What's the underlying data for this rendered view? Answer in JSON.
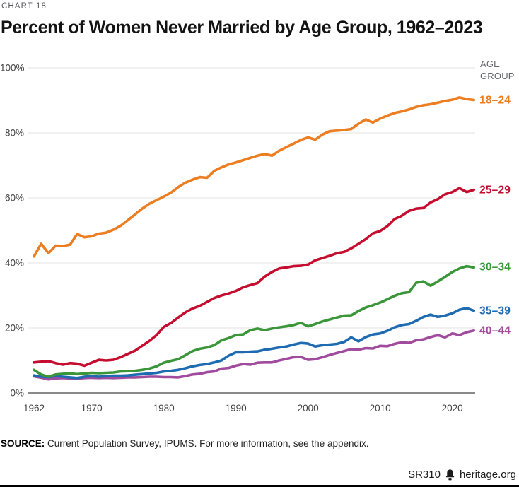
{
  "header": {
    "kicker": "CHART 18",
    "title": "Percent of Women Never Married by Age Group, 1962–2023"
  },
  "footer": {
    "source_label": "SOURCE:",
    "source_text": "Current Population Survey, IPUMS. For more information, see the appendix.",
    "report_id": "SR310",
    "site": "heritage.org"
  },
  "chart_data": {
    "type": "line",
    "title": "Percent of Women Never Married by Age Group, 1962–2023",
    "legend_title": "AGE GROUP",
    "legend_position": "right",
    "grid": true,
    "grid_color": "#e3e3e3",
    "axis_color": "#8a8a8a",
    "ylim": [
      0,
      100
    ],
    "xlim": [
      1962,
      2023
    ],
    "y_ticks": [
      {
        "value": 0,
        "label": "0%"
      },
      {
        "value": 20,
        "label": "20%"
      },
      {
        "value": 40,
        "label": "40%"
      },
      {
        "value": 60,
        "label": "60%"
      },
      {
        "value": 80,
        "label": "80%"
      },
      {
        "value": 100,
        "label": "100%"
      }
    ],
    "x_ticks": [
      {
        "year": 1962,
        "label": "1962"
      },
      {
        "year": 1970,
        "label": "1970"
      },
      {
        "year": 1980,
        "label": "1980"
      },
      {
        "year": 1990,
        "label": "1990"
      },
      {
        "year": 2000,
        "label": "2000"
      },
      {
        "year": 2010,
        "label": "2010"
      },
      {
        "year": 2020,
        "label": "2020"
      }
    ],
    "years": [
      1962,
      1963,
      1964,
      1965,
      1966,
      1967,
      1968,
      1969,
      1970,
      1971,
      1972,
      1973,
      1974,
      1975,
      1976,
      1977,
      1978,
      1979,
      1980,
      1981,
      1982,
      1983,
      1984,
      1985,
      1986,
      1987,
      1988,
      1989,
      1990,
      1991,
      1992,
      1993,
      1994,
      1995,
      1996,
      1997,
      1998,
      1999,
      2000,
      2001,
      2002,
      2003,
      2004,
      2005,
      2006,
      2007,
      2008,
      2009,
      2010,
      2011,
      2012,
      2013,
      2014,
      2015,
      2016,
      2017,
      2018,
      2019,
      2020,
      2021,
      2022,
      2023
    ],
    "series": [
      {
        "name": "18–24",
        "color": "#ed7d21",
        "values": [
          42.0,
          45.9,
          43.0,
          45.3,
          45.2,
          45.6,
          48.9,
          47.9,
          48.2,
          49.0,
          49.3,
          50.2,
          51.4,
          53.1,
          54.9,
          56.7,
          58.2,
          59.3,
          60.4,
          61.6,
          63.3,
          64.7,
          65.6,
          66.4,
          66.2,
          68.3,
          69.4,
          70.3,
          70.9,
          71.6,
          72.3,
          73.0,
          73.5,
          73.0,
          74.5,
          75.6,
          76.7,
          77.8,
          78.6,
          77.9,
          79.5,
          80.5,
          80.7,
          80.9,
          81.2,
          82.8,
          84.1,
          83.2,
          84.4,
          85.3,
          86.1,
          86.6,
          87.2,
          88.0,
          88.5,
          88.8,
          89.3,
          89.8,
          90.2,
          90.9,
          90.4,
          90.1
        ]
      },
      {
        "name": "25–29",
        "color": "#c50e2f",
        "values": [
          9.4,
          9.6,
          9.8,
          9.2,
          8.7,
          9.2,
          9.0,
          8.4,
          9.3,
          10.2,
          10.0,
          10.2,
          11.0,
          12.0,
          13.0,
          14.5,
          16.0,
          17.8,
          20.3,
          21.5,
          23.2,
          24.8,
          26.0,
          26.8,
          28.0,
          29.2,
          30.0,
          30.6,
          31.4,
          32.5,
          33.2,
          33.8,
          35.8,
          37.2,
          38.3,
          38.6,
          39.0,
          39.1,
          39.5,
          40.8,
          41.5,
          42.2,
          43.0,
          43.4,
          44.5,
          45.9,
          47.3,
          49.1,
          49.8,
          51.3,
          53.5,
          54.5,
          56.0,
          56.7,
          56.9,
          58.6,
          59.6,
          61.1,
          61.8,
          63.0,
          61.8,
          62.5
        ]
      },
      {
        "name": "30–34",
        "color": "#3a9639",
        "values": [
          7.1,
          5.7,
          5.0,
          5.7,
          5.9,
          6.0,
          5.8,
          6.0,
          6.2,
          6.1,
          6.2,
          6.3,
          6.6,
          6.7,
          6.8,
          7.1,
          7.5,
          8.2,
          9.3,
          9.9,
          10.4,
          11.6,
          12.9,
          13.6,
          14.0,
          14.7,
          16.2,
          16.9,
          17.8,
          18.0,
          19.3,
          19.8,
          19.3,
          19.8,
          20.2,
          20.5,
          20.9,
          21.6,
          20.5,
          21.2,
          22.0,
          22.6,
          23.2,
          23.8,
          23.9,
          25.2,
          26.3,
          27.0,
          27.8,
          28.8,
          29.9,
          30.7,
          31.0,
          33.9,
          34.3,
          33.0,
          34.3,
          35.7,
          37.2,
          38.3,
          39.0,
          38.6
        ]
      },
      {
        "name": "35–39",
        "color": "#1e6bb2",
        "values": [
          5.4,
          5.0,
          4.9,
          5.2,
          5.0,
          4.8,
          4.6,
          5.0,
          5.2,
          5.0,
          5.2,
          5.3,
          5.3,
          5.4,
          5.6,
          5.8,
          6.0,
          6.2,
          6.6,
          6.8,
          7.1,
          7.6,
          8.2,
          8.6,
          8.9,
          9.4,
          10.0,
          11.5,
          12.5,
          12.5,
          12.7,
          12.8,
          13.3,
          13.6,
          14.0,
          14.3,
          14.9,
          15.4,
          15.2,
          14.3,
          14.7,
          14.9,
          15.1,
          15.7,
          17.1,
          15.9,
          17.2,
          18.0,
          18.3,
          19.1,
          20.2,
          20.9,
          21.2,
          22.2,
          23.4,
          24.1,
          23.4,
          23.8,
          24.5,
          25.6,
          26.1,
          25.3
        ]
      },
      {
        "name": "40–44",
        "color": "#a04b9d",
        "values": [
          5.1,
          4.7,
          4.2,
          4.5,
          4.6,
          4.5,
          4.4,
          4.6,
          4.7,
          4.6,
          4.7,
          4.6,
          4.7,
          4.8,
          4.8,
          4.9,
          5.0,
          5.0,
          4.9,
          4.9,
          4.8,
          5.2,
          5.7,
          5.9,
          6.4,
          6.6,
          7.5,
          7.7,
          8.4,
          8.9,
          8.7,
          9.3,
          9.4,
          9.4,
          10.0,
          10.5,
          11.0,
          11.1,
          10.2,
          10.4,
          11.0,
          11.7,
          12.3,
          12.9,
          13.5,
          13.3,
          13.8,
          13.7,
          14.5,
          14.4,
          15.1,
          15.6,
          15.4,
          16.2,
          16.5,
          17.2,
          17.8,
          17.1,
          18.3,
          17.8,
          18.7,
          19.2
        ]
      }
    ]
  }
}
